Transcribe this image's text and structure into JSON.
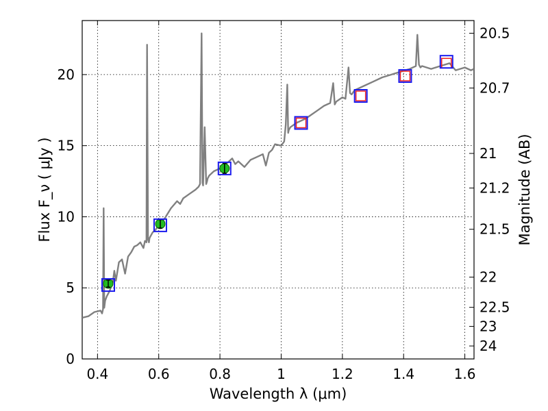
{
  "chart_data": {
    "type": "line",
    "xlabel": "Wavelength  λ (μm)",
    "ylabel": "Flux  F_ν  ( μJy )",
    "ylabel_right": "Magnitude (AB)",
    "xlim": [
      0.35,
      1.63
    ],
    "ylim": [
      0,
      23.8
    ],
    "grid": true,
    "x_ticks": [
      0.4,
      0.6,
      0.8,
      1.0,
      1.2,
      1.4,
      1.6
    ],
    "x_tick_labels": [
      "0.4",
      "0.6",
      "0.8",
      "1",
      "1.2",
      "1.4",
      "1.6"
    ],
    "y_ticks": [
      0,
      5,
      10,
      15,
      20
    ],
    "y_tick_labels": [
      "0",
      "5",
      "10",
      "15",
      "20"
    ],
    "right_ticks": [
      {
        "label": "20.5",
        "mag": 20.5
      },
      {
        "label": "20.7",
        "mag": 20.7
      },
      {
        "label": "21",
        "mag": 21.0
      },
      {
        "label": "21.2",
        "mag": 21.2
      },
      {
        "label": "21.5",
        "mag": 21.5
      },
      {
        "label": "22",
        "mag": 22.0
      },
      {
        "label": "22.5",
        "mag": 22.5
      },
      {
        "label": "23",
        "mag": 23.0
      },
      {
        "label": "24",
        "mag": 24.0
      }
    ],
    "series": [
      {
        "kind": "spectrum",
        "color": "#808080",
        "x": [
          0.35,
          0.37,
          0.39,
          0.41,
          0.415,
          0.418,
          0.42,
          0.422,
          0.425,
          0.43,
          0.44,
          0.45,
          0.455,
          0.46,
          0.47,
          0.48,
          0.49,
          0.5,
          0.51,
          0.52,
          0.53,
          0.54,
          0.55,
          0.555,
          0.56,
          0.562,
          0.565,
          0.568,
          0.57,
          0.575,
          0.58,
          0.59,
          0.6,
          0.62,
          0.64,
          0.66,
          0.67,
          0.68,
          0.7,
          0.72,
          0.73,
          0.735,
          0.74,
          0.743,
          0.745,
          0.75,
          0.755,
          0.758,
          0.76,
          0.765,
          0.78,
          0.8,
          0.82,
          0.84,
          0.85,
          0.86,
          0.88,
          0.9,
          0.92,
          0.94,
          0.95,
          0.96,
          0.97,
          0.98,
          1.0,
          1.01,
          1.015,
          1.02,
          1.023,
          1.025,
          1.03,
          1.05,
          1.08,
          1.1,
          1.12,
          1.14,
          1.16,
          1.17,
          1.175,
          1.18,
          1.2,
          1.21,
          1.22,
          1.225,
          1.23,
          1.24,
          1.27,
          1.3,
          1.33,
          1.36,
          1.39,
          1.42,
          1.44,
          1.445,
          1.45,
          1.455,
          1.46,
          1.49,
          1.52,
          1.55,
          1.57,
          1.6,
          1.62,
          1.63
        ],
        "y": [
          2.9,
          3.0,
          3.3,
          3.4,
          3.2,
          3.5,
          10.6,
          3.6,
          4.1,
          4.4,
          4.8,
          5.4,
          6.2,
          5.5,
          6.8,
          7.0,
          6.0,
          7.2,
          7.5,
          7.9,
          8.0,
          8.2,
          7.8,
          8.3,
          8.2,
          22.1,
          8.4,
          8.2,
          8.5,
          8.7,
          8.9,
          9.1,
          9.4,
          9.9,
          10.6,
          11.1,
          10.9,
          11.3,
          11.6,
          11.9,
          12.1,
          12.3,
          22.9,
          12.4,
          12.2,
          16.3,
          12.3,
          12.5,
          12.7,
          12.9,
          13.2,
          13.4,
          13.7,
          14.1,
          13.7,
          13.9,
          13.5,
          14.0,
          14.2,
          14.4,
          13.6,
          14.5,
          14.7,
          15.1,
          15.0,
          15.3,
          16.5,
          19.3,
          15.9,
          16.1,
          16.3,
          16.6,
          16.9,
          17.2,
          17.5,
          17.8,
          18.0,
          19.4,
          17.9,
          18.1,
          18.4,
          18.3,
          20.5,
          18.7,
          18.6,
          18.9,
          19.2,
          19.5,
          19.8,
          20.0,
          20.2,
          20.4,
          20.6,
          22.8,
          20.7,
          20.5,
          20.6,
          20.4,
          20.6,
          20.8,
          20.3,
          20.5,
          20.3,
          20.4
        ]
      },
      {
        "kind": "photometry-optical",
        "marker": "filled-circle-with-errorbar",
        "color": "#22bb22",
        "x": [
          0.435,
          0.605,
          0.815
        ],
        "y": [
          5.3,
          9.5,
          13.4
        ],
        "yerr": [
          0.25,
          0.3,
          0.35
        ]
      },
      {
        "kind": "photometry-nir",
        "marker": "open-square",
        "color": "#ee2222",
        "x": [
          1.065,
          1.26,
          1.405,
          1.54
        ],
        "y": [
          16.6,
          18.5,
          19.9,
          20.8
        ]
      },
      {
        "kind": "model-synthetic",
        "marker": "open-square",
        "color": "#1a1aee",
        "x": [
          0.435,
          0.605,
          0.815,
          1.065,
          1.26,
          1.405,
          1.54
        ],
        "y": [
          5.2,
          9.4,
          13.4,
          16.6,
          18.5,
          19.9,
          20.9
        ]
      }
    ]
  }
}
